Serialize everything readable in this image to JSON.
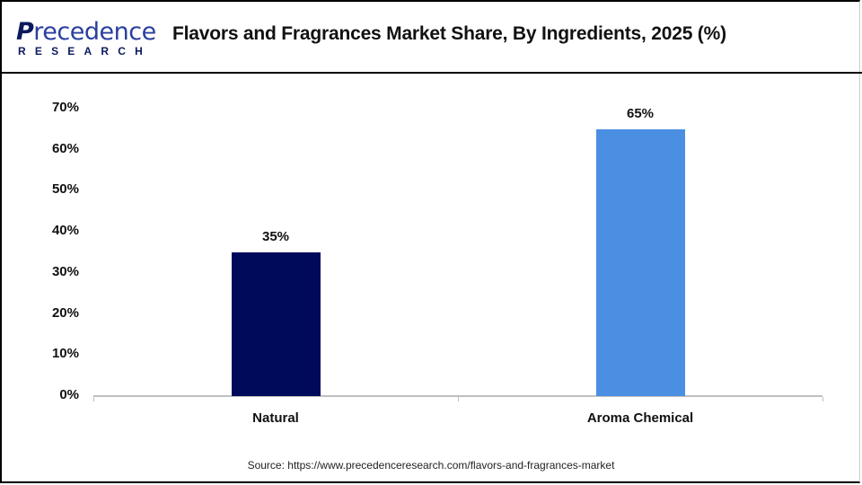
{
  "brand": {
    "logo_initial": "P",
    "logo_rest": "recedence",
    "logo_sub": "RESEARCH"
  },
  "chart_data": {
    "type": "bar",
    "title": "Flavors and Fragrances Market Share, By Ingredients, 2025 (%)",
    "categories": [
      "Natural",
      "Aroma Chemical"
    ],
    "values": [
      35,
      65
    ],
    "value_labels": [
      "35%",
      "65%"
    ],
    "colors": [
      "#000a5a",
      "#4a8fe2"
    ],
    "xlabel": "",
    "ylabel": "",
    "ylim": [
      0,
      70
    ],
    "yticks": [
      "0%",
      "10%",
      "20%",
      "30%",
      "40%",
      "50%",
      "60%",
      "70%"
    ],
    "grid": false,
    "legend": null
  },
  "source": "Source: https://www.precedenceresearch.com/flavors-and-fragrances-market"
}
